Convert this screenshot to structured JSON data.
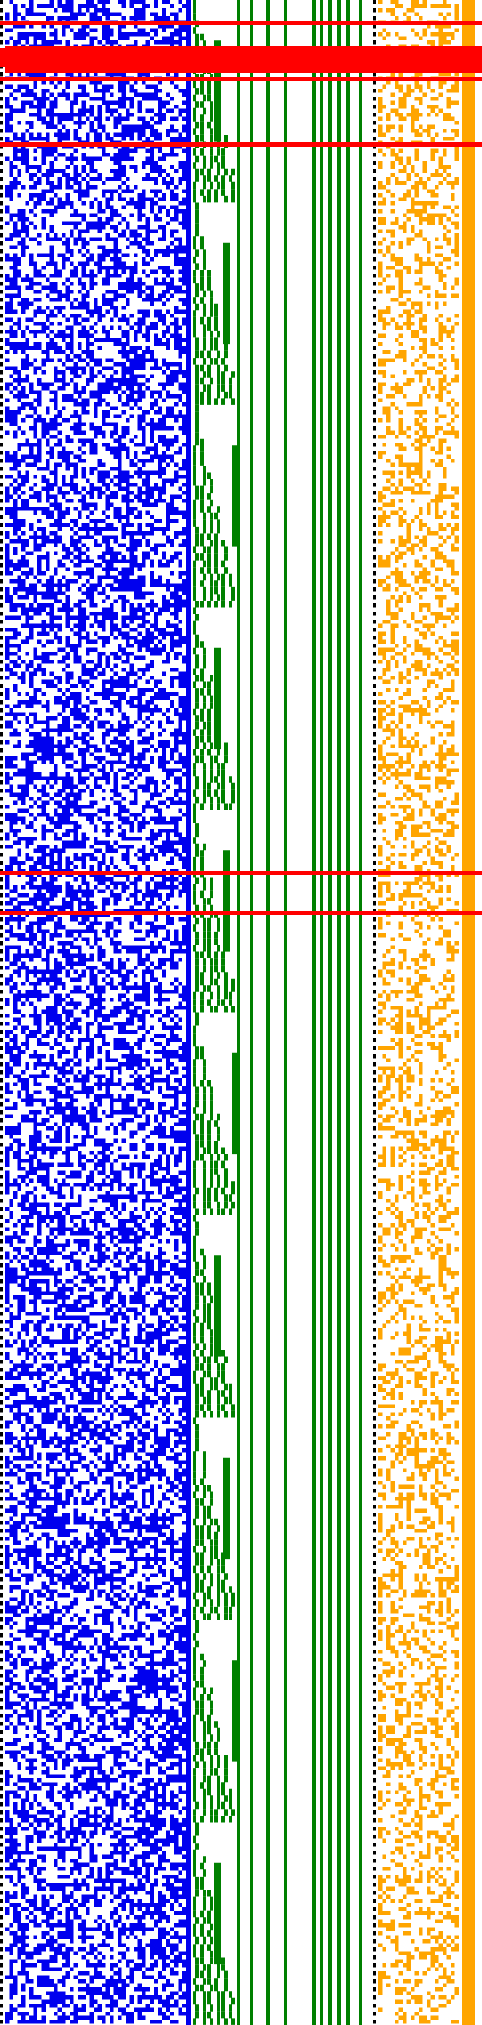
{
  "colors": {
    "background": "#ffffff",
    "noise": "#0000ee",
    "tree": "#008000",
    "heavy": "#ff0000",
    "bits": "#ffa500",
    "dots": "#000000"
  },
  "regions": {
    "noise_density": 0.5,
    "bits_density": 0.32,
    "tree_bands": 10,
    "grid_rows": 1000,
    "highlight_rows_fraction": [
      0.01,
      0.024,
      0.028,
      0.038,
      0.07,
      0.43,
      0.45
    ]
  }
}
